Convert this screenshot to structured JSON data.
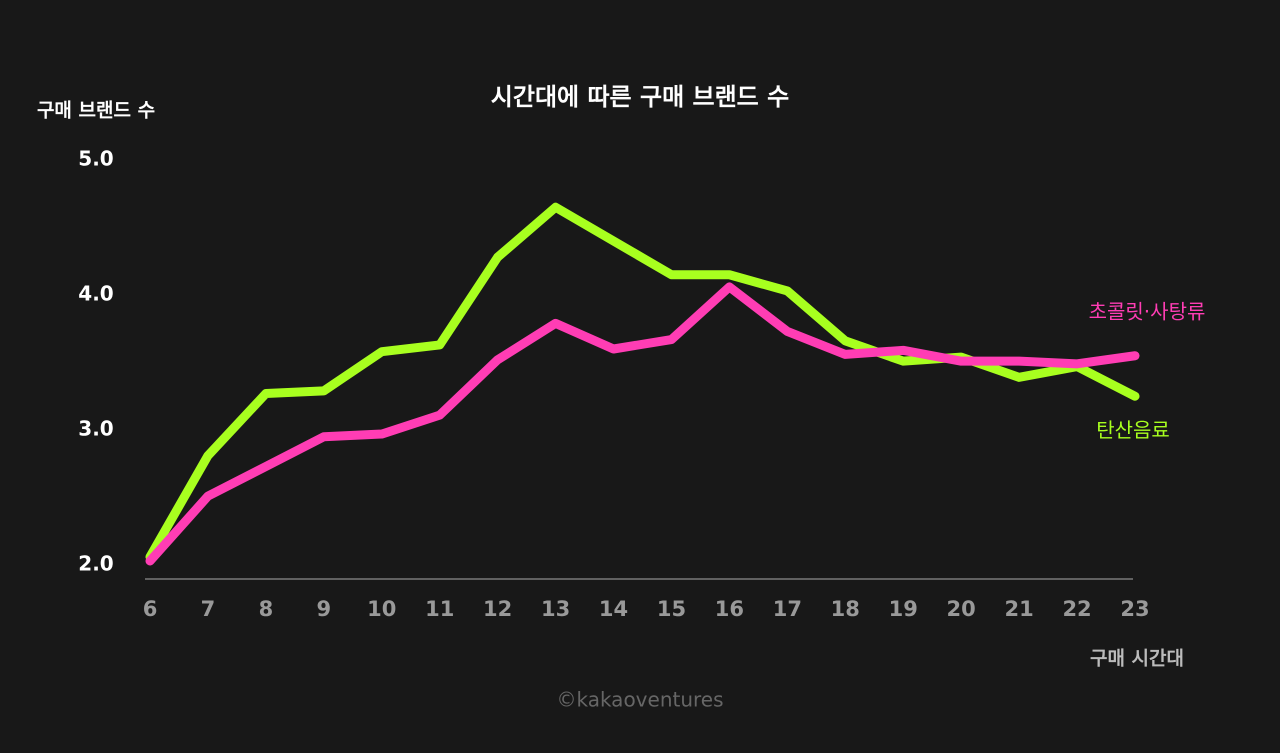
{
  "chart_data": {
    "type": "line",
    "title": "시간대에 따른 구매 브랜드 수",
    "y_label": "구매 브랜드 수",
    "x_label": "구매 시간대",
    "watermark": "©kakaoventures",
    "categories": [
      "6",
      "7",
      "8",
      "9",
      "10",
      "11",
      "12",
      "13",
      "14",
      "15",
      "16",
      "17",
      "18",
      "19",
      "20",
      "21",
      "22",
      "23"
    ],
    "series": [
      {
        "name": "탄산음료",
        "color": "#a8ff1f",
        "values": [
          2.06,
          2.81,
          3.27,
          3.29,
          3.58,
          3.63,
          4.28,
          4.65,
          4.4,
          4.15,
          4.15,
          4.03,
          3.66,
          3.51,
          3.54,
          3.39,
          3.47,
          3.25
        ]
      },
      {
        "name": "초콜릿·사탕류",
        "color": "#ff3db4",
        "values": [
          2.03,
          2.51,
          2.73,
          2.95,
          2.97,
          3.11,
          3.52,
          3.79,
          3.6,
          3.67,
          4.06,
          3.73,
          3.56,
          3.59,
          3.51,
          3.51,
          3.49,
          3.55
        ]
      }
    ],
    "ylim": [
      2.0,
      5.0
    ],
    "yticks": [
      {
        "value": 2,
        "label": "2.0"
      },
      {
        "value": 3,
        "label": "3.0"
      },
      {
        "value": 4,
        "label": "4.0"
      },
      {
        "value": 5,
        "label": "5.0"
      }
    ],
    "grid": false
  }
}
